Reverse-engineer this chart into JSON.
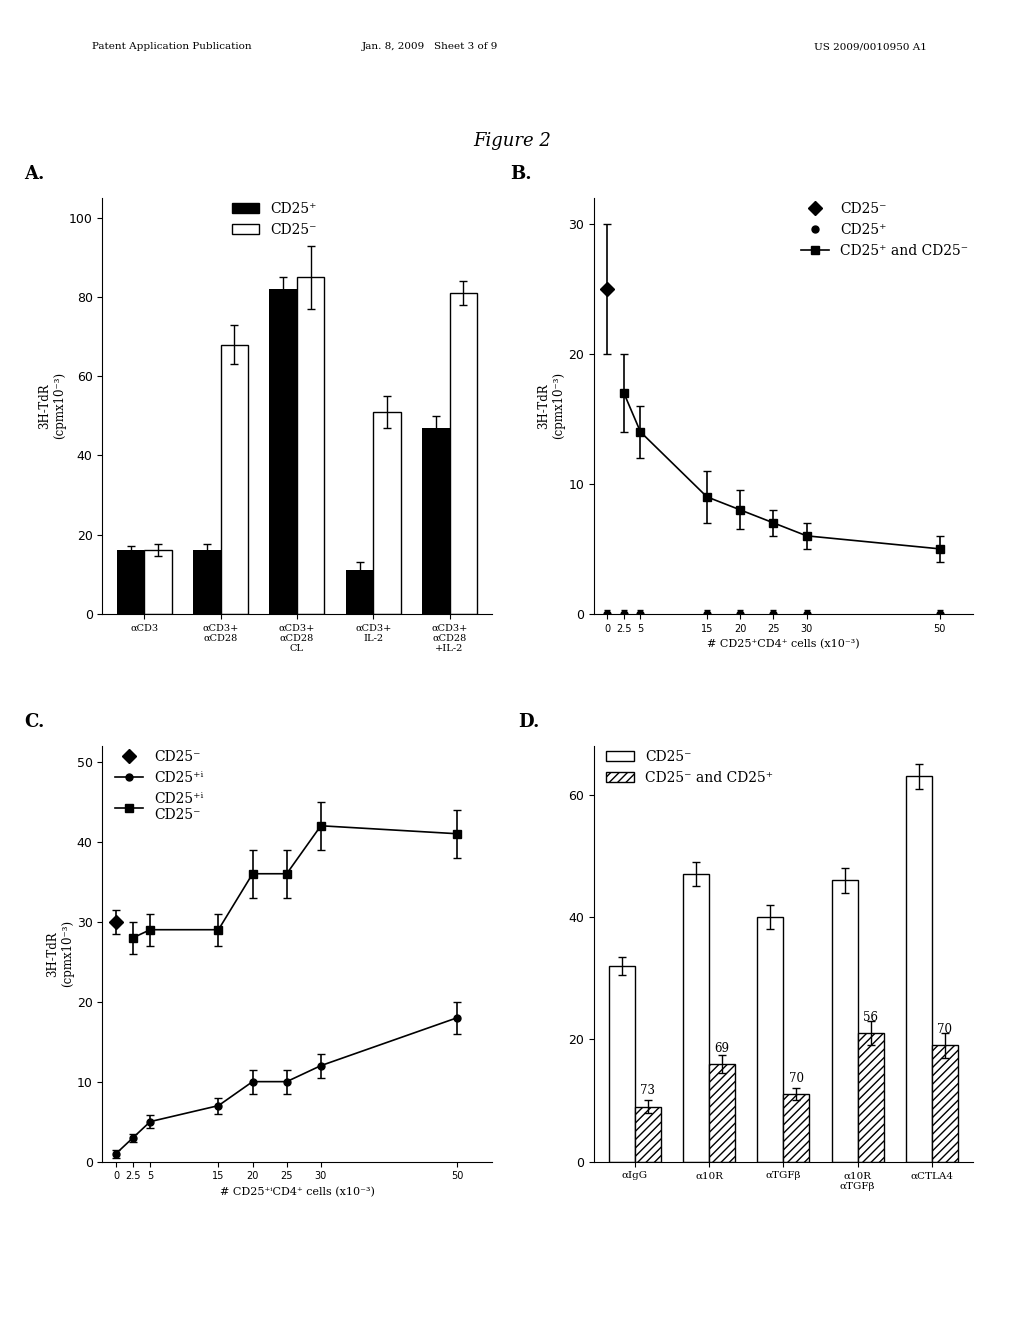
{
  "figure_title": "Figure 2",
  "header_left": "Patent Application Publication",
  "header_mid": "Jan. 8, 2009   Sheet 3 of 9",
  "header_right": "US 2009/0010950 A1",
  "panel_A": {
    "categories": [
      "αCD3",
      "αCD3+\nαCD28",
      "αCD3+\nαCD28\nCL",
      "αCD3+\nIL-2",
      "αCD3+\nαCD28\n+IL-2"
    ],
    "cd25pos": [
      16,
      16,
      82,
      11,
      47
    ],
    "cd25neg": [
      16,
      68,
      85,
      51,
      81
    ],
    "cd25pos_err": [
      1,
      1.5,
      3,
      2,
      3
    ],
    "cd25neg_err": [
      1.5,
      5,
      8,
      4,
      3
    ],
    "ylabel": "3H-TdR\n(cpmx10⁻³)",
    "ylim": [
      0,
      105
    ],
    "yticks": [
      0,
      20,
      40,
      60,
      80,
      100
    ]
  },
  "panel_B": {
    "x": [
      0,
      2.5,
      5,
      15,
      20,
      25,
      30,
      50
    ],
    "cd25neg_x": [
      0
    ],
    "cd25neg_y": [
      25
    ],
    "cd25neg_err": [
      5
    ],
    "cd25pos_y": [
      0,
      0,
      0,
      0,
      0,
      0,
      0,
      0
    ],
    "cd25pos_err": [
      0.3,
      0.3,
      0.3,
      0.3,
      0.3,
      0.3,
      0.3,
      0.3
    ],
    "cd25both_x": [
      2.5,
      5,
      15,
      20,
      25,
      30,
      50
    ],
    "cd25both_y": [
      17,
      14,
      9,
      8,
      7,
      6,
      5
    ],
    "cd25both_err": [
      3,
      2,
      2,
      1.5,
      1,
      1,
      1
    ],
    "ylabel": "3H-TdR\n(cpmx10⁻³)",
    "xlabel": "# CD25⁺CD4⁺ cells (x10⁻³)",
    "ylim": [
      0,
      32
    ],
    "yticks": [
      0,
      10,
      20,
      30
    ]
  },
  "panel_C": {
    "x": [
      0,
      2.5,
      5,
      15,
      20,
      25,
      30,
      50
    ],
    "cd25neg_x": [
      0
    ],
    "cd25neg_y": [
      30
    ],
    "cd25neg_err": [
      1.5
    ],
    "cd25posi_y": [
      1,
      3,
      5,
      7,
      10,
      10,
      12,
      18
    ],
    "cd25posi_err": [
      0.5,
      0.5,
      0.8,
      1,
      1.5,
      1.5,
      1.5,
      2
    ],
    "cd25both_x": [
      2.5,
      5,
      15,
      20,
      25,
      30,
      50
    ],
    "cd25both_y": [
      28,
      29,
      29,
      36,
      36,
      42,
      41
    ],
    "cd25both_err": [
      2,
      2,
      2,
      3,
      3,
      3,
      3
    ],
    "ylabel": "3H-TdR\n(cpmx10⁻³)",
    "xlabel": "# CD25⁺ⁱCD4⁺ cells (x10⁻³)",
    "ylim": [
      0,
      52
    ],
    "yticks": [
      0,
      10,
      20,
      30,
      40,
      50
    ]
  },
  "panel_D": {
    "categories": [
      "αIgG",
      "α10R",
      "αTGFβ",
      "α10R\nαTGFβ",
      "αCTLA4"
    ],
    "cd25neg": [
      32,
      47,
      40,
      46,
      63
    ],
    "cd25neg_err": [
      1.5,
      2,
      2,
      2,
      2
    ],
    "combined": [
      9,
      16,
      11,
      21,
      19
    ],
    "combined_err": [
      1,
      1.5,
      1,
      2,
      2
    ],
    "percent_labels": [
      73,
      69,
      70,
      56,
      70
    ],
    "ylim": [
      0,
      68
    ],
    "yticks": [
      0,
      20,
      40,
      60
    ]
  }
}
